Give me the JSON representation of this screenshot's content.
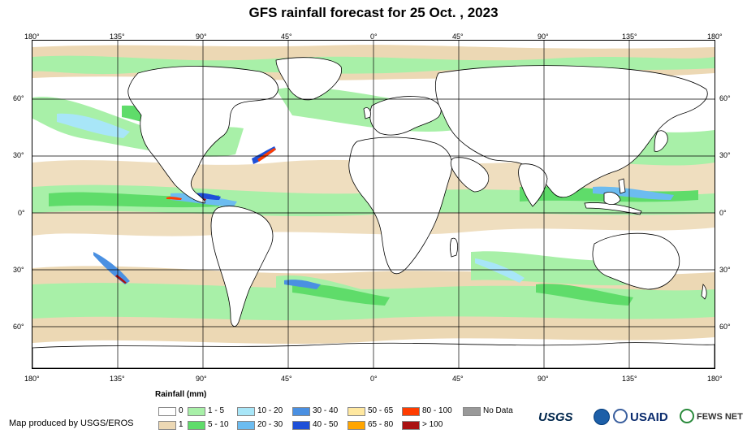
{
  "title": "GFS rainfall forecast for 25 Oct. , 2023",
  "axes": {
    "top_lon": [
      "180°",
      "135°",
      "90°",
      "45°",
      "0°",
      "45°",
      "90°",
      "135°",
      "180°"
    ],
    "bottom_lon": [
      "180°",
      "135°",
      "90°",
      "45°",
      "0°",
      "45°",
      "90°",
      "135°",
      "180°"
    ],
    "lat": [
      "60°",
      "30°",
      "0°",
      "30°",
      "60°"
    ]
  },
  "legend": {
    "title": "Rainfall (mm)",
    "items": [
      {
        "label": "0",
        "color": "#ffffff"
      },
      {
        "label": "1",
        "color": "#ecd8b4"
      },
      {
        "label": "1 - 5",
        "color": "#a8f0a8"
      },
      {
        "label": "5 - 10",
        "color": "#5fdc6a"
      },
      {
        "label": "10 - 20",
        "color": "#a8e6f8"
      },
      {
        "label": "20 - 30",
        "color": "#6cbcf0"
      },
      {
        "label": "30 - 40",
        "color": "#4a90e2"
      },
      {
        "label": "40 - 50",
        "color": "#1f50d8"
      },
      {
        "label": "50 - 65",
        "color": "#ffe8a0"
      },
      {
        "label": "65 - 80",
        "color": "#ffa500"
      },
      {
        "label": "80 - 100",
        "color": "#ff3c00"
      },
      {
        "label": "> 100",
        "color": "#aa1111"
      },
      {
        "label": "No Data",
        "color": "#999999"
      }
    ]
  },
  "credit": "Map produced by USGS/EROS",
  "logos": {
    "usgs": "USGS",
    "usaid": "USAID",
    "fewsnet": "FEWS NET"
  }
}
